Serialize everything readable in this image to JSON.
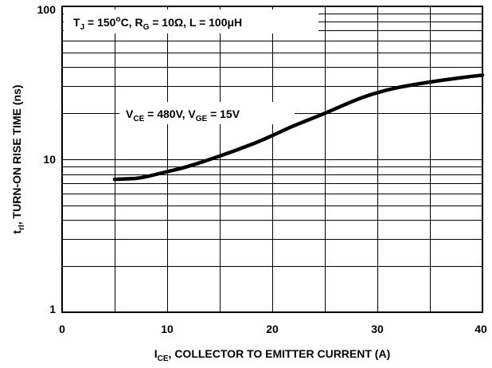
{
  "chart_data": {
    "type": "line",
    "x_scale": "linear",
    "y_scale": "log",
    "xlim": [
      0,
      40
    ],
    "ylim": [
      1,
      100
    ],
    "grid": true,
    "x_ticks": [
      "0",
      "10",
      "20",
      "30",
      "40"
    ],
    "y_ticks": [
      "1",
      "10",
      "100"
    ],
    "xlabel": {
      "main": "I",
      "sub": "CE",
      "rest": ", COLLECTOR TO EMITTER CURRENT (A)"
    },
    "ylabel": {
      "main": "t",
      "sub": "rI",
      "rest": ",  TURN-ON RISE TIME  (ns)"
    },
    "annotations": {
      "conditions": {
        "tj": "T",
        "tj_sub": "J",
        "tj_val": " = 150",
        "tj_sup": "o",
        "tj_unit": "C, R",
        "rg_sub": "G",
        "rg_val": " = 10Ω, L = 100μH"
      },
      "bias": {
        "vce": "V",
        "vce_sub": "CE",
        "vce_val": " = 480V, V",
        "vge_sub": "GE",
        "vge_val": " = 15V"
      }
    },
    "series": [
      {
        "x": [
          5,
          7,
          8,
          10,
          12,
          15,
          18,
          20,
          22,
          25,
          28,
          30,
          32,
          35,
          38,
          40
        ],
        "y": [
          7.4,
          7.5,
          7.7,
          8.3,
          9.0,
          10.5,
          12.5,
          14.3,
          16.5,
          20.0,
          24.5,
          27.3,
          29.5,
          32.0,
          34.2,
          35.5
        ]
      }
    ]
  }
}
